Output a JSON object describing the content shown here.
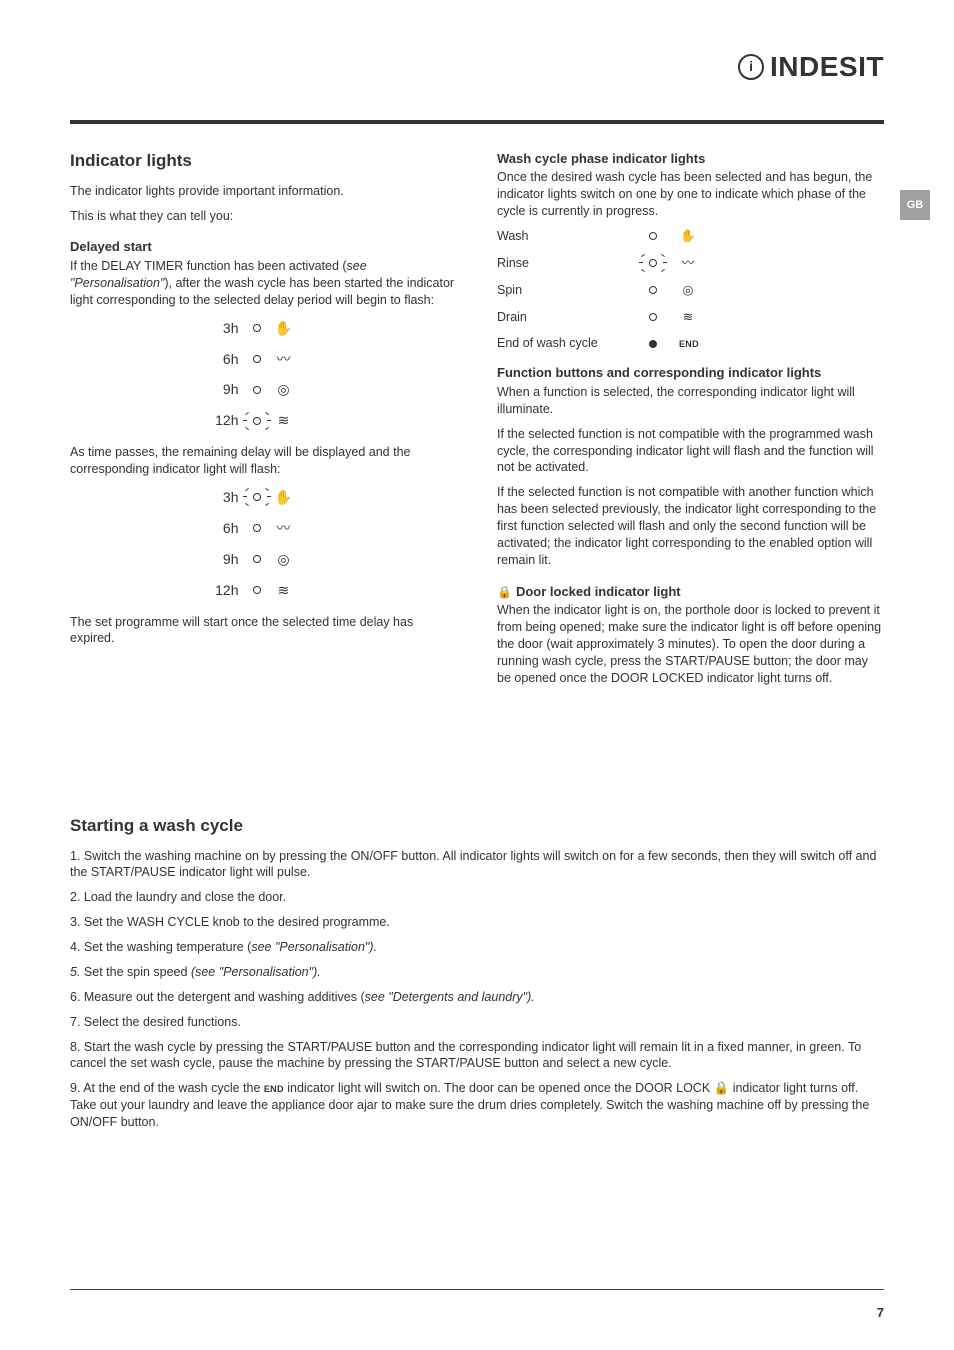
{
  "brand": "INDESIT",
  "lang_tab": "GB",
  "left": {
    "h_indicator": "Indicator lights",
    "p_intro1": "The indicator lights provide important information.",
    "p_intro2": "This is what they can tell you:",
    "h_delayed": "Delayed start",
    "p_delayed_span1": "If the DELAY TIMER function has been activated (",
    "p_delayed_em": "see \"Personalisation\"",
    "p_delayed_span2": "), after the wash cycle has been started the indicator light corresponding to the selected delay period will begin to flash:",
    "delays1": [
      {
        "t": "3h",
        "flash": false,
        "icon": "wash"
      },
      {
        "t": "6h",
        "flash": false,
        "icon": "rinse"
      },
      {
        "t": "9h",
        "flash": false,
        "icon": "spin"
      },
      {
        "t": "12h",
        "flash": true,
        "icon": "drain"
      }
    ],
    "p_aspasses": "As time passes, the remaining delay will be displayed and the corresponding indicator light will flash:",
    "delays2": [
      {
        "t": "3h",
        "flash": true,
        "icon": "wash"
      },
      {
        "t": "6h",
        "flash": false,
        "icon": "rinse"
      },
      {
        "t": "9h",
        "flash": false,
        "icon": "spin"
      },
      {
        "t": "12h",
        "flash": false,
        "icon": "drain"
      }
    ],
    "p_setprog": "The set programme will start once the selected time delay has expired."
  },
  "right": {
    "h_phase": "Wash cycle phase indicator lights",
    "p_phase": "Once the desired wash cycle has been selected and has begun, the indicator lights switch on one by one to indicate which phase of the cycle is currently in progress.",
    "phases": [
      {
        "label": "Wash",
        "icon": "wash",
        "flash": false,
        "on": false
      },
      {
        "label": "Rinse",
        "icon": "rinse",
        "flash": true,
        "on": false
      },
      {
        "label": "Spin",
        "icon": "spin",
        "flash": false,
        "on": false
      },
      {
        "label": "Drain",
        "icon": "drain",
        "flash": false,
        "on": false
      },
      {
        "label": "End of wash cycle",
        "icon": "end",
        "flash": false,
        "on": true
      }
    ],
    "h_func": "Function buttons and corresponding indicator lights",
    "p_func1": "When a function is selected, the corresponding indicator light will illuminate.",
    "p_func2": "If the selected function is not compatible with the programmed wash cycle, the corresponding indicator light will flash and the function will not be activated.",
    "p_func3": "If the selected function is not compatible with another function which has been selected previously, the indicator light corresponding to the first function selected will flash and only the second function will be activated; the indicator light corresponding to the enabled option will remain lit.",
    "h_door": "Door locked indicator light",
    "p_door": "When the indicator light is on, the porthole door is locked to prevent it from being opened; make sure the indicator light is off before opening the door (wait approximately 3 minutes). To open the door during a running wash cycle, press the START/PAUSE button; the door may be opened once the DOOR LOCKED indicator light turns off."
  },
  "lower": {
    "h_start": "Starting a wash cycle",
    "s1": "1. Switch the washing machine on by pressing the ON/OFF button. All indicator lights will switch on for a few seconds, then they will switch off and the START/PAUSE indicator light will pulse.",
    "s2": "2. Load the laundry and close the door.",
    "s3": "3. Set the WASH CYCLE knob to the desired programme.",
    "s4a": "4. Set the washing temperature (",
    "s4i": "see \"Personalisation\").",
    "s5a": "5.",
    "s5i": " Set the spin speed ",
    "s5i2": "(see \"Personalisation\").",
    "s6a": "6. Measure out the detergent and washing additives (",
    "s6i": "see \"Detergents and laundry\").",
    "s7": "7. Select the desired functions.",
    "s8": "8. Start the wash cycle by pressing the START/PAUSE button and the corresponding indicator light will remain lit in a fixed manner, in green. To cancel the set wash cycle, pause the machine by pressing the START/PAUSE button and select a new cycle.",
    "s9a": "9. At the end of the wash cycle the ",
    "s9end": "END",
    "s9b": " indicator light will switch on. The door can be opened once the DOOR LOCK ",
    "s9lock": "🔒",
    "s9c": " indicator light turns off. Take out your laundry and leave the appliance door ajar to make sure the drum dries completely. Switch the washing machine off by pressing the ON/OFF button."
  },
  "pagenum": "7",
  "glyphs": {
    "wash": "✋",
    "rinse": "〰",
    "spin": "◎",
    "drain": "≋",
    "end": "END"
  }
}
